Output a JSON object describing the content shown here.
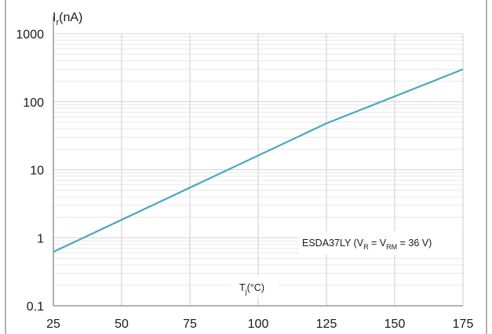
{
  "chart_data": {
    "type": "line",
    "x_scale": "linear",
    "y_scale": "log",
    "xlim": [
      25,
      175
    ],
    "ylim": [
      0.1,
      1000
    ],
    "x_ticks": [
      25,
      50,
      75,
      100,
      125,
      150,
      175
    ],
    "x_tick_labels": [
      "25",
      "50",
      "75",
      "100",
      "125",
      "150",
      "175"
    ],
    "y_ticks": [
      0.1,
      1,
      10,
      100,
      1000
    ],
    "y_tick_labels": [
      "0.1",
      "1",
      "10",
      "100",
      "1000"
    ],
    "ylabel": {
      "main": "I",
      "sub": "r",
      "rest": "(nA)"
    },
    "xlabel": {
      "main": "T",
      "sub": "j",
      "rest": "(°C)"
    },
    "grid": {
      "major": true,
      "minor_y": true
    },
    "series": [
      {
        "x": [
          25,
          125,
          175
        ],
        "y": [
          0.62,
          48,
          300
        ],
        "color": "#4aa7bf"
      }
    ],
    "annotation": {
      "parts": [
        "ESDA37LY (V",
        "R",
        " = V",
        "RM",
        " = 36 V)"
      ]
    },
    "colors": {
      "line": "#4aa7bf",
      "grid_major": "#d4d4d4",
      "grid_minor": "#e8e8e8",
      "frame": "#9a9a9a",
      "annotation_box": "#ffffff"
    }
  }
}
